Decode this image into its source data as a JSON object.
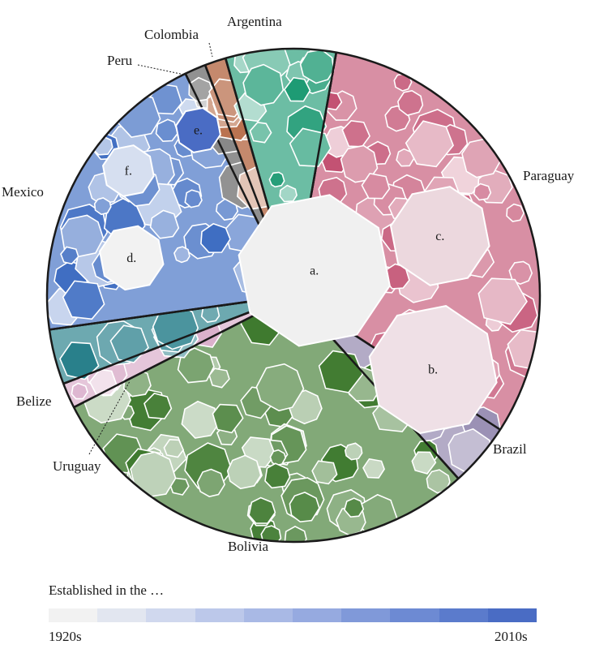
{
  "chart_data": {
    "type": "voronoi-treemap",
    "regions": [
      {
        "name": "Paraguay",
        "color": "#c35273",
        "start_angle": 10,
        "end_angle": 123
      },
      {
        "name": "Brazil",
        "color": "#8a7ea8",
        "start_angle": 123,
        "end_angle": 138
      },
      {
        "name": "Bolivia",
        "color": "#3f7a2f",
        "start_angle": 138,
        "end_angle": 243
      },
      {
        "name": "Uruguay",
        "color": "#d7a7c6",
        "start_angle": 243,
        "end_angle": 249
      },
      {
        "name": "Belize",
        "color": "#1f7a86",
        "start_angle": 249,
        "end_angle": 262
      },
      {
        "name": "Mexico",
        "color": "#3c6bc1",
        "start_angle": 262,
        "end_angle": 334
      },
      {
        "name": "Peru",
        "color": "#555555",
        "start_angle": 334,
        "end_angle": 339
      },
      {
        "name": "Colombia",
        "color": "#a64a1e",
        "start_angle": 339,
        "end_angle": 344
      },
      {
        "name": "Argentina",
        "color": "#1d9a73",
        "start_angle": 344,
        "end_angle": 370
      }
    ],
    "annotations": [
      "a.",
      "b.",
      "c.",
      "d.",
      "e.",
      "f."
    ]
  },
  "legend": {
    "title": "Established in the …",
    "min_label": "1920s",
    "max_label": "2010s",
    "colors": [
      "#f2f2f2",
      "#e2e6f0",
      "#d0d8ee",
      "#bcc8ea",
      "#a9b9e5",
      "#96aae0",
      "#8099d9",
      "#6d8ad3",
      "#5b7bcc",
      "#4a6cc4"
    ]
  }
}
